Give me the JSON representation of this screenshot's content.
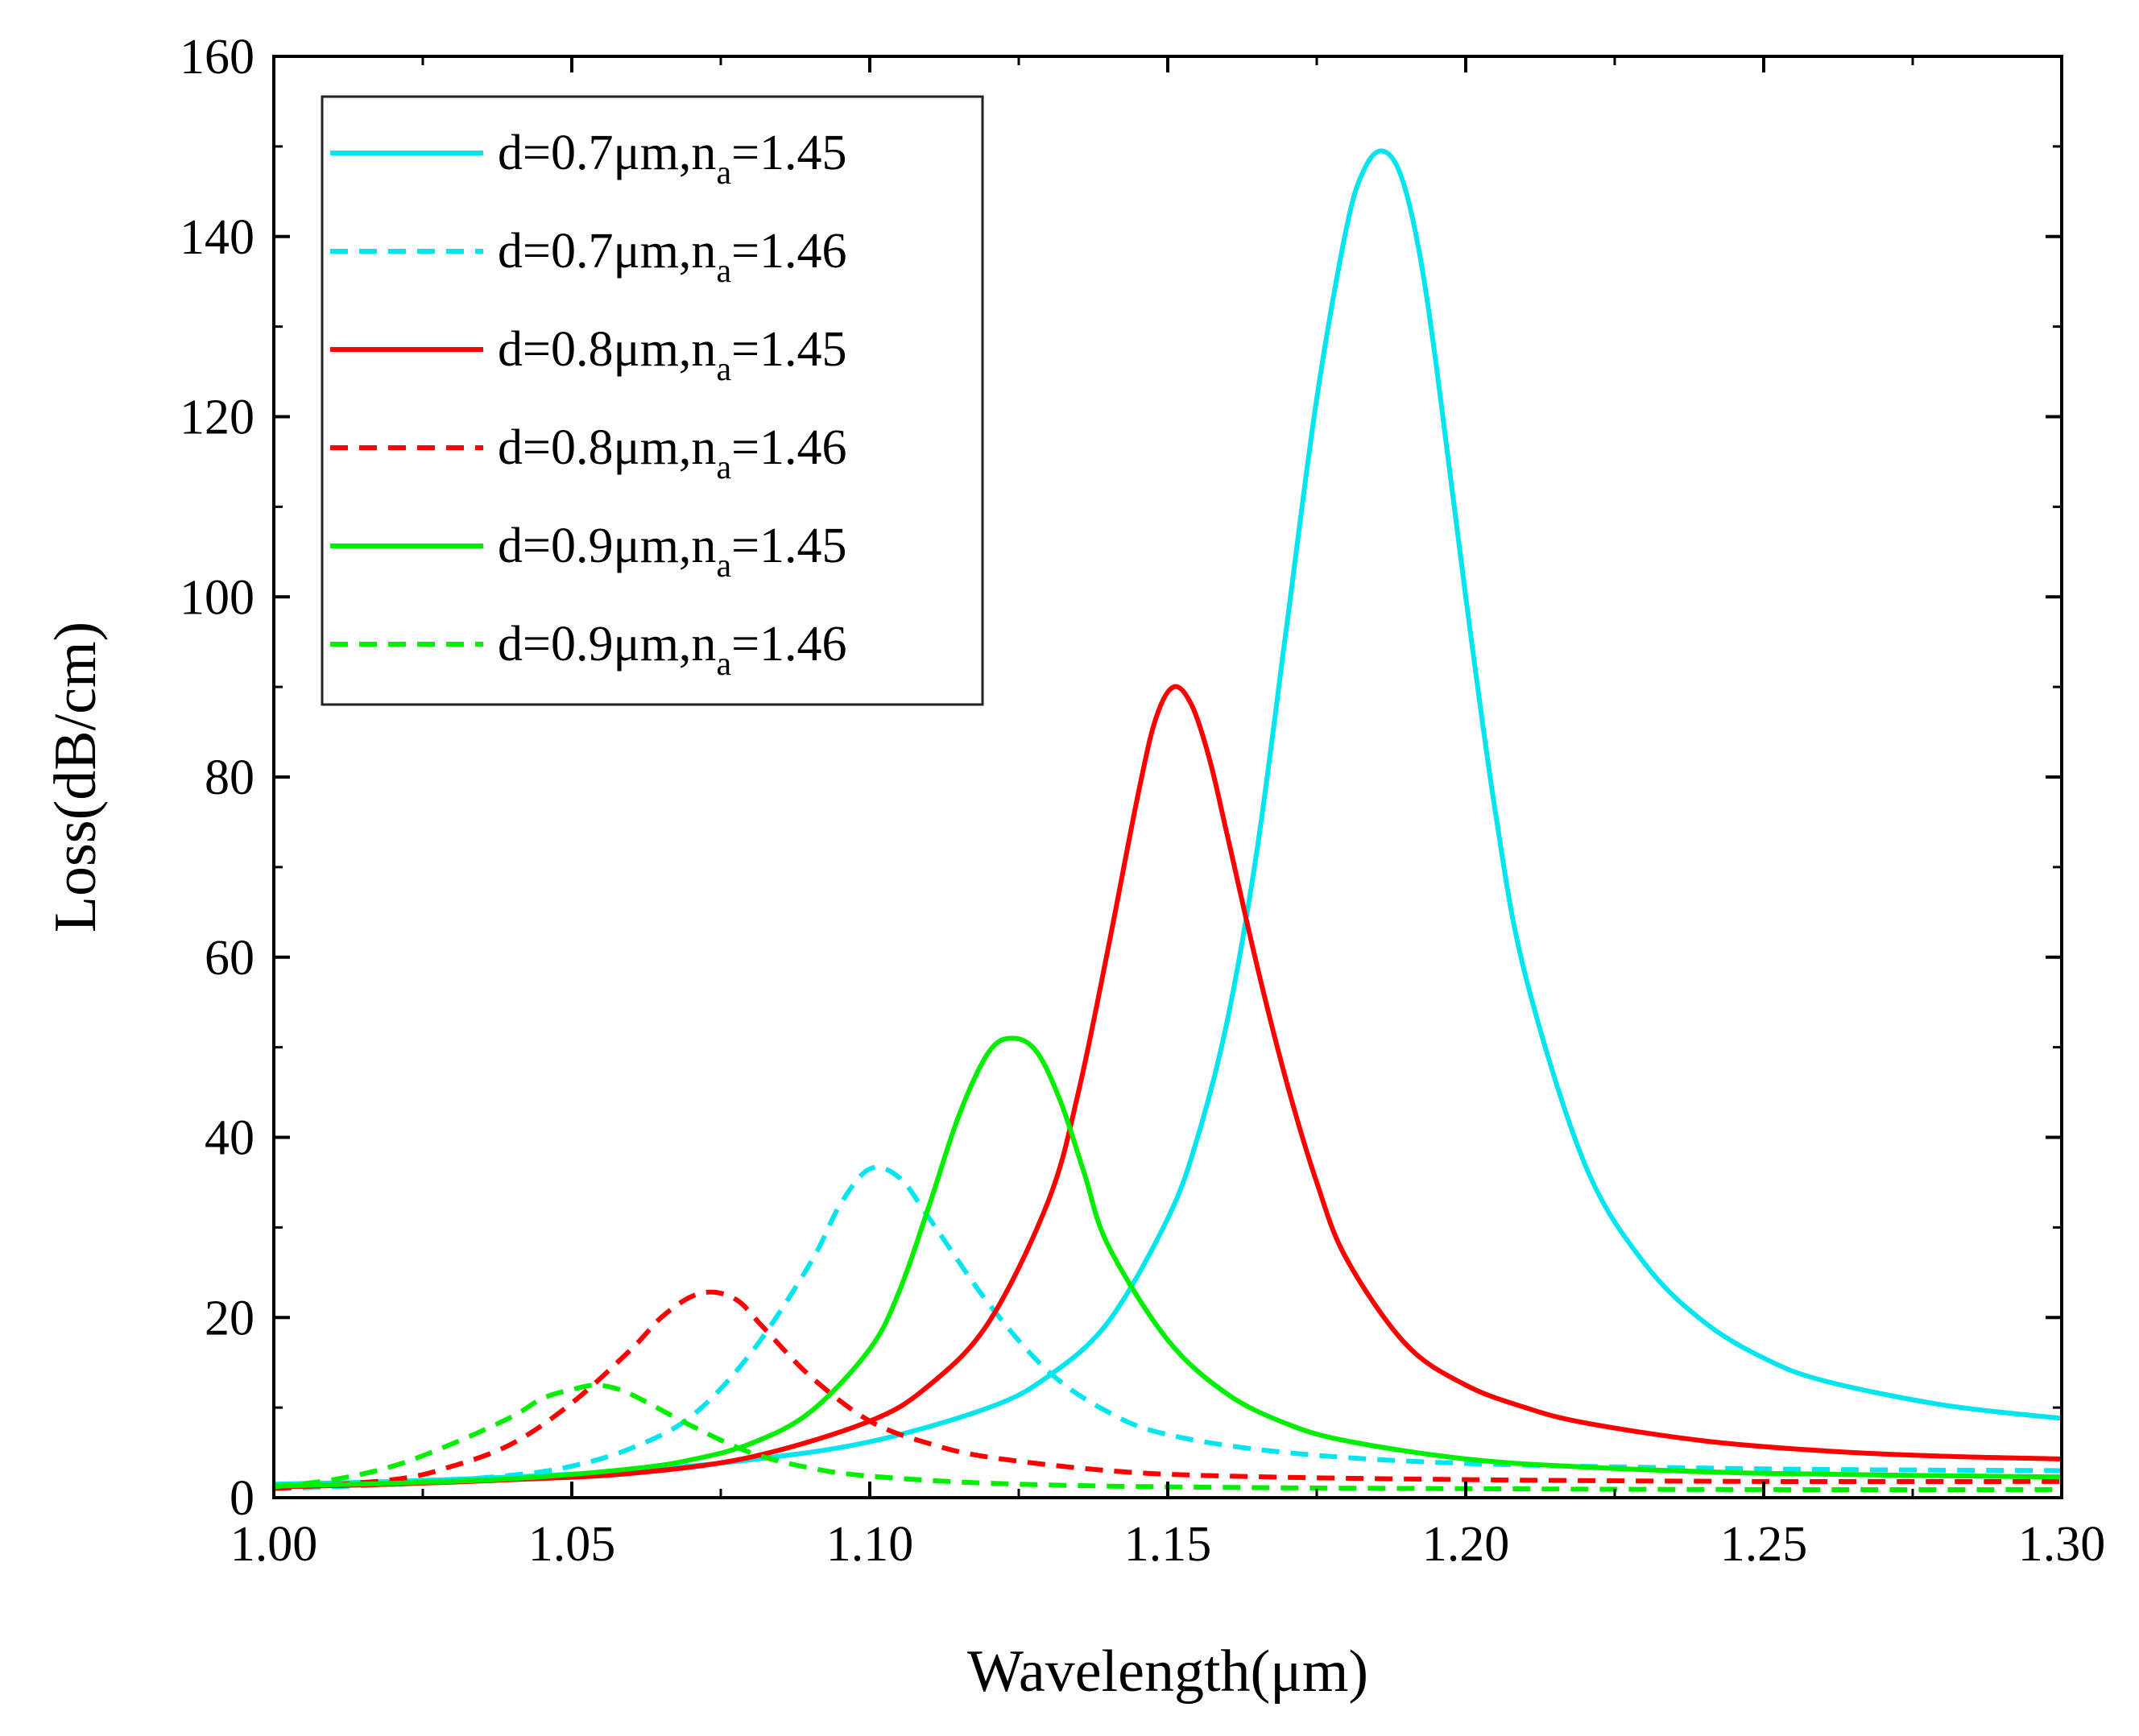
{
  "chart_data": {
    "type": "line",
    "title": "",
    "xlabel": "Wavelength(μm)",
    "ylabel": "Loss(dB/cm)",
    "xlim": [
      1.0,
      1.3
    ],
    "ylim": [
      0,
      160
    ],
    "xticks": [
      1.0,
      1.05,
      1.1,
      1.15,
      1.2,
      1.25,
      1.3
    ],
    "xtick_labels": [
      "1.00",
      "1.05",
      "1.10",
      "1.15",
      "1.20",
      "1.25",
      "1.30"
    ],
    "yticks": [
      0,
      20,
      40,
      60,
      80,
      100,
      120,
      140,
      160
    ],
    "ytick_labels": [
      "0",
      "20",
      "40",
      "60",
      "80",
      "100",
      "120",
      "140",
      "160"
    ],
    "grid": false,
    "legend_position": "top-left",
    "series": [
      {
        "name": "d=0.7μm,na=1.45",
        "legend_main": "d=0.7μm,n",
        "legend_sub": "a",
        "legend_tail": "=1.45",
        "color": "#00e5ee",
        "dash": "solid",
        "x": [
          1.0,
          1.02,
          1.04,
          1.06,
          1.08,
          1.1,
          1.12,
          1.13,
          1.14,
          1.15,
          1.155,
          1.16,
          1.165,
          1.17,
          1.175,
          1.18,
          1.183,
          1.186,
          1.189,
          1.192,
          1.195,
          1.2,
          1.205,
          1.21,
          1.22,
          1.23,
          1.24,
          1.25,
          1.26,
          1.28,
          1.3
        ],
        "y": [
          1.5,
          1.8,
          2.3,
          3.0,
          4.2,
          6.2,
          10.0,
          13.5,
          19.5,
          31.0,
          40.0,
          53.0,
          72.0,
          97.0,
          122.0,
          141.0,
          147.5,
          149.5,
          147.0,
          139.0,
          126.0,
          100.0,
          76.0,
          58.0,
          37.0,
          26.0,
          19.5,
          15.5,
          13.0,
          10.3,
          8.8
        ]
      },
      {
        "name": "d=0.7μm,na=1.46",
        "legend_main": "d=0.7μm,n",
        "legend_sub": "a",
        "legend_tail": "=1.46",
        "color": "#00e5ee",
        "dash": "dashed",
        "x": [
          1.0,
          1.02,
          1.04,
          1.05,
          1.06,
          1.07,
          1.08,
          1.09,
          1.095,
          1.1,
          1.105,
          1.11,
          1.12,
          1.13,
          1.14,
          1.15,
          1.17,
          1.2,
          1.25,
          1.3
        ],
        "y": [
          1.0,
          1.5,
          2.5,
          3.5,
          5.5,
          9.0,
          16.0,
          26.0,
          32.5,
          36.5,
          35.5,
          31.0,
          21.5,
          14.0,
          9.5,
          7.0,
          5.0,
          3.8,
          3.2,
          3.0
        ]
      },
      {
        "name": "d=0.8μm,na=1.45",
        "legend_main": "d=0.8μm,n",
        "legend_sub": "a",
        "legend_tail": "=1.45",
        "color": "#ff0000",
        "dash": "solid",
        "x": [
          1.0,
          1.02,
          1.04,
          1.06,
          1.08,
          1.1,
          1.11,
          1.12,
          1.13,
          1.135,
          1.14,
          1.145,
          1.148,
          1.151,
          1.154,
          1.157,
          1.16,
          1.165,
          1.17,
          1.175,
          1.18,
          1.19,
          1.2,
          1.21,
          1.22,
          1.24,
          1.26,
          1.28,
          1.3
        ],
        "y": [
          1.2,
          1.5,
          2.0,
          2.7,
          4.5,
          8.5,
          12.5,
          19.5,
          33.0,
          45.0,
          61.0,
          78.0,
          86.5,
          90.0,
          88.0,
          82.0,
          73.5,
          59.0,
          46.0,
          35.0,
          26.5,
          17.0,
          12.5,
          10.0,
          8.3,
          6.3,
          5.2,
          4.6,
          4.3
        ]
      },
      {
        "name": "d=0.8μm,na=1.46",
        "legend_main": "d=0.8μm,n",
        "legend_sub": "a",
        "legend_tail": "=1.46",
        "color": "#ff0000",
        "dash": "dashed",
        "x": [
          1.0,
          1.02,
          1.03,
          1.04,
          1.05,
          1.06,
          1.065,
          1.07,
          1.074,
          1.078,
          1.082,
          1.09,
          1.1,
          1.11,
          1.12,
          1.14,
          1.16,
          1.2,
          1.25,
          1.3
        ],
        "y": [
          1.0,
          2.0,
          3.5,
          6.0,
          10.5,
          16.5,
          20.0,
          22.3,
          22.8,
          21.8,
          19.0,
          13.5,
          8.5,
          6.0,
          4.5,
          3.0,
          2.4,
          2.0,
          1.8,
          1.8
        ]
      },
      {
        "name": "d=0.9μm,na=1.45",
        "legend_main": "d=0.9μm,n",
        "legend_sub": "a",
        "legend_tail": "=1.45",
        "color": "#00ee00",
        "dash": "solid",
        "x": [
          1.0,
          1.02,
          1.04,
          1.06,
          1.07,
          1.08,
          1.09,
          1.1,
          1.105,
          1.11,
          1.115,
          1.12,
          1.124,
          1.128,
          1.132,
          1.136,
          1.14,
          1.15,
          1.16,
          1.17,
          1.18,
          1.2,
          1.22,
          1.25,
          1.3
        ],
        "y": [
          1.3,
          1.6,
          2.1,
          3.2,
          4.2,
          6.0,
          9.5,
          16.5,
          23.0,
          32.5,
          42.5,
          49.5,
          51.0,
          49.5,
          44.0,
          36.0,
          28.0,
          17.5,
          11.5,
          8.2,
          6.3,
          4.3,
          3.4,
          2.7,
          2.3
        ]
      },
      {
        "name": "d=0.9μm,na=1.46",
        "legend_main": "d=0.9μm,n",
        "legend_sub": "a",
        "legend_tail": "=1.46",
        "color": "#00ee00",
        "dash": "dashed",
        "x": [
          1.0,
          1.01,
          1.02,
          1.03,
          1.04,
          1.045,
          1.05,
          1.054,
          1.058,
          1.062,
          1.07,
          1.08,
          1.09,
          1.1,
          1.12,
          1.15,
          1.2,
          1.25,
          1.3
        ],
        "y": [
          1.2,
          2.0,
          3.5,
          6.0,
          9.0,
          11.0,
          12.0,
          12.5,
          12.0,
          10.8,
          8.0,
          5.0,
          3.3,
          2.4,
          1.6,
          1.2,
          1.0,
          0.9,
          0.9
        ]
      }
    ]
  }
}
